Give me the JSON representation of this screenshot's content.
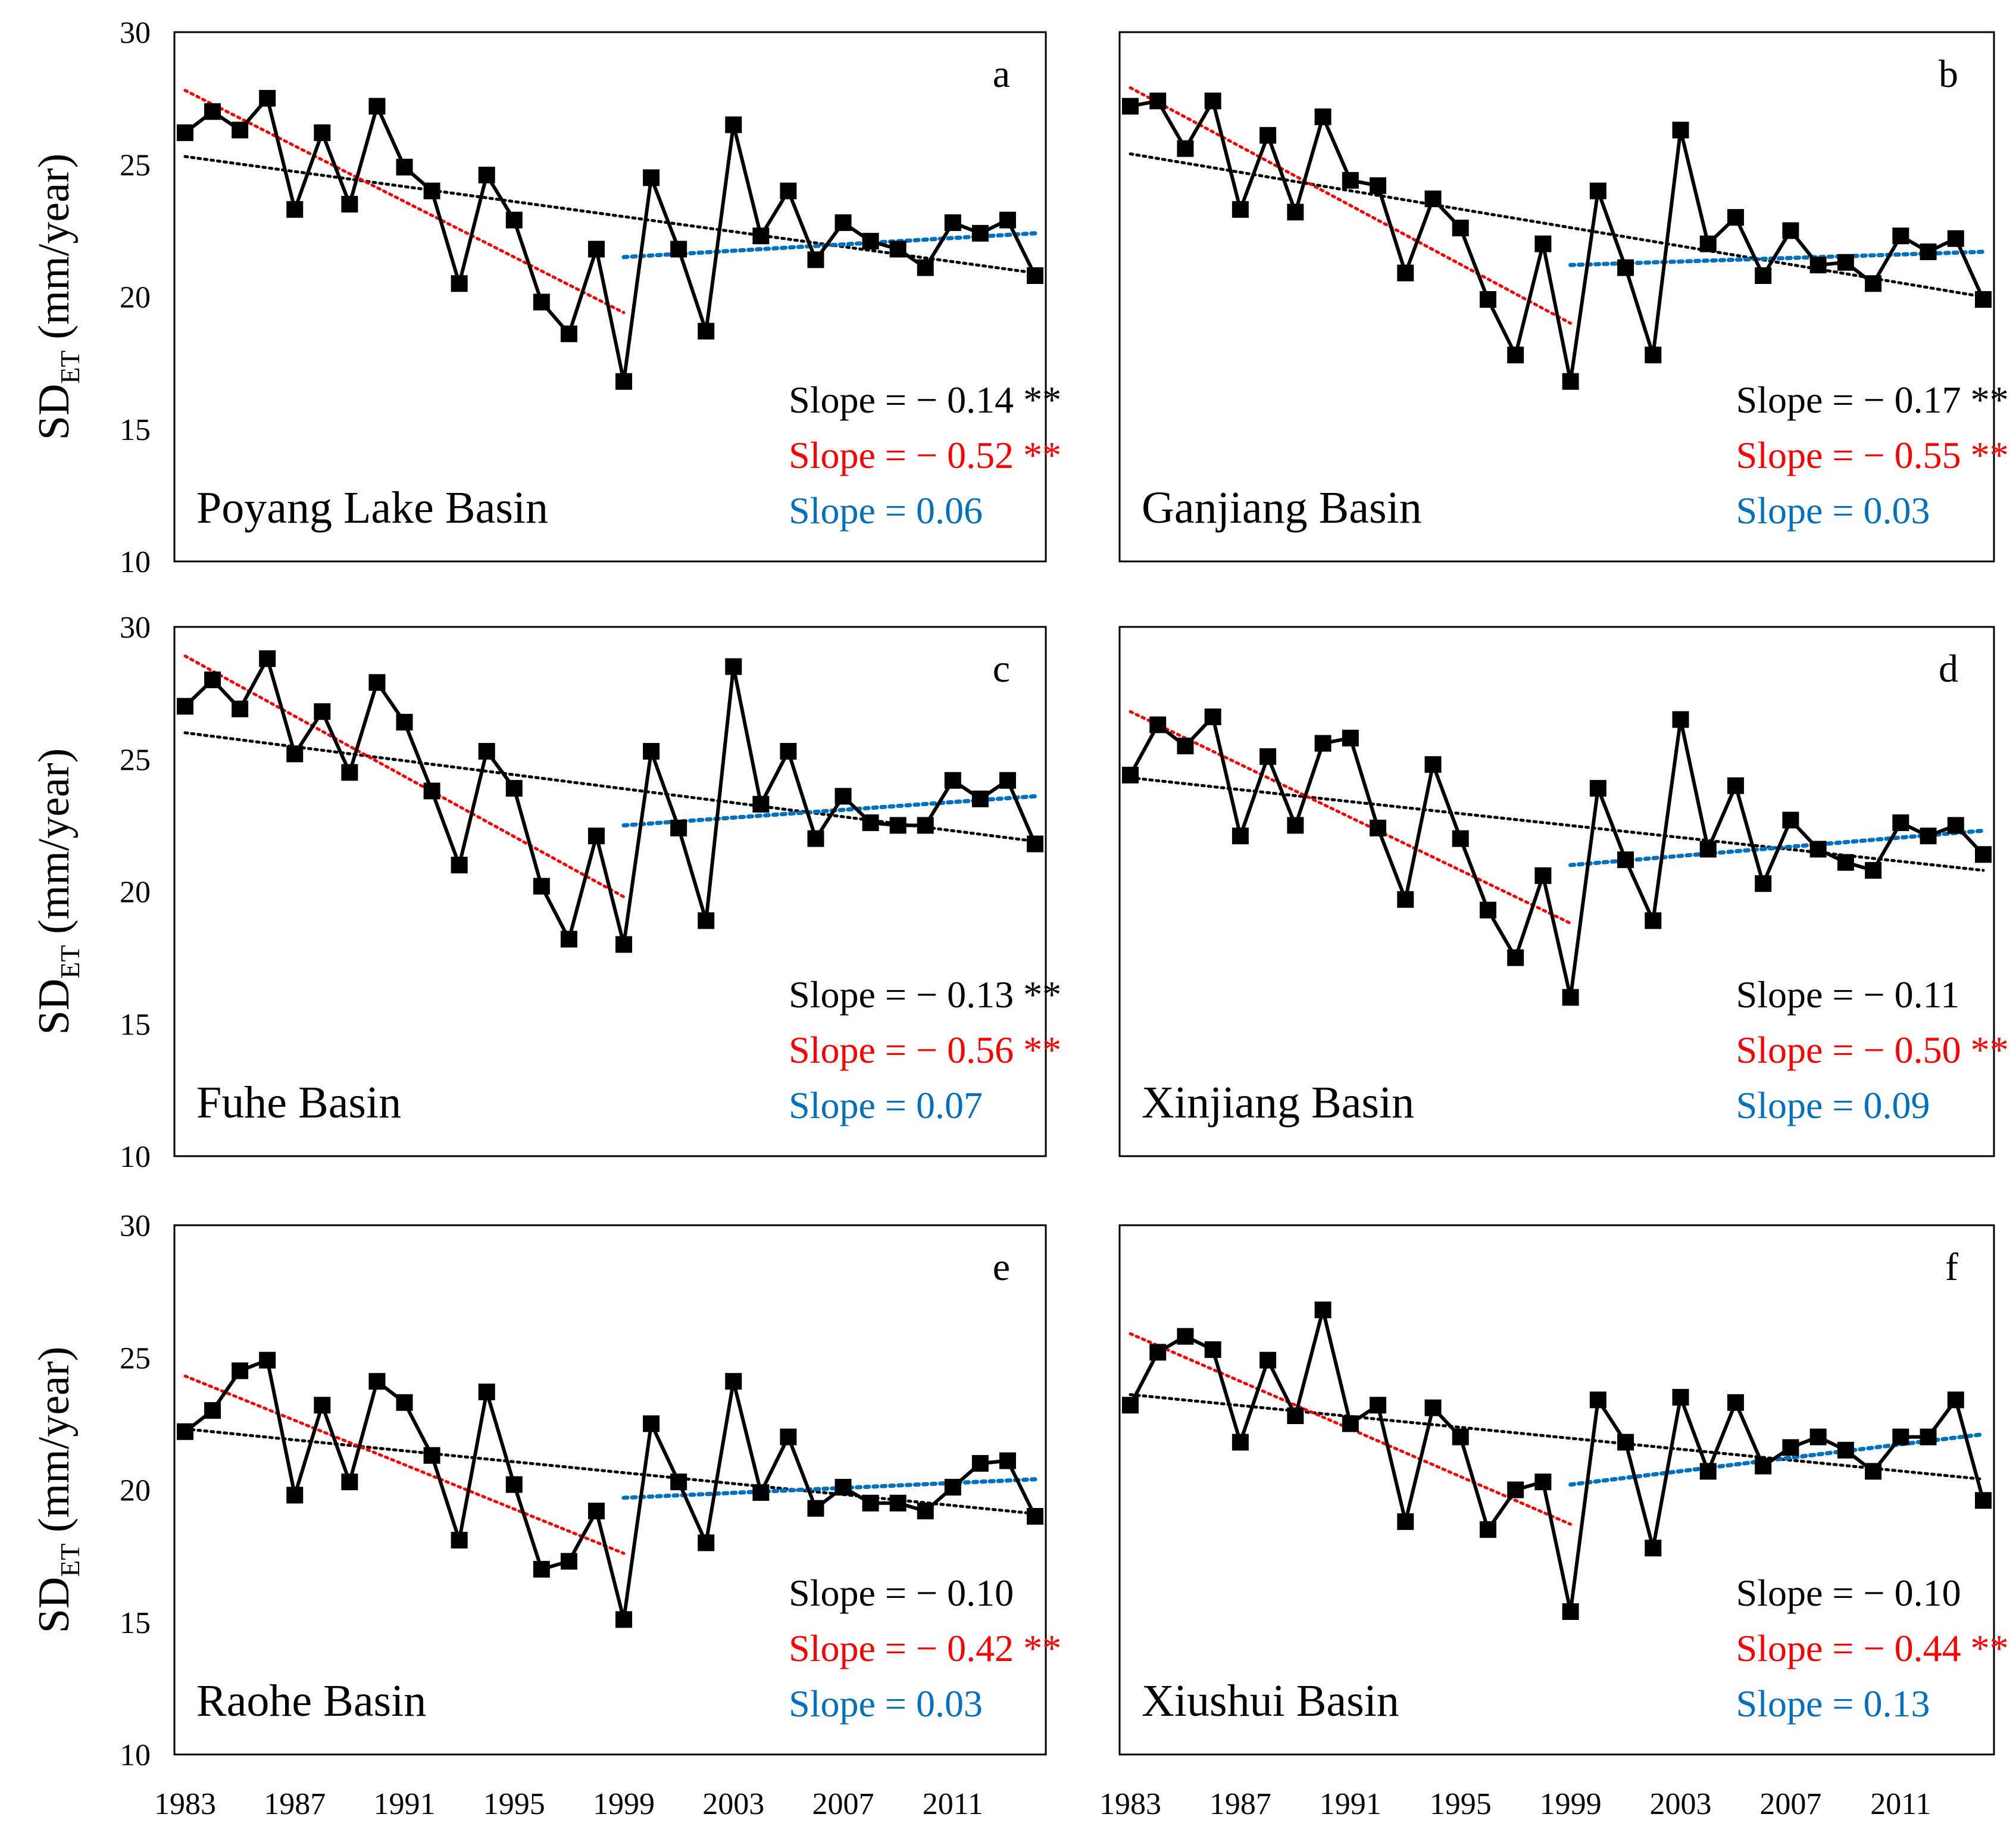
{
  "colors": {
    "series": "#000000",
    "trend_all": "#000000",
    "trend_early": "#ff0000",
    "trend_late": "#0070c0"
  },
  "chart_data": [
    {
      "type": "line",
      "panel": "a",
      "basin": "Poyang Lake Basin",
      "ylabel_main": "SD",
      "ylabel_sub": "ET",
      "ylabel_unit": " (mm/year)",
      "ylim": [
        10,
        30
      ],
      "yticks": [
        "10",
        "15",
        "20",
        "25",
        "30"
      ],
      "xlim": [
        1983,
        2014
      ],
      "xticks": [
        "1983",
        "1987",
        "1991",
        "1995",
        "1999",
        "2003",
        "2007",
        "2011"
      ],
      "x": [
        1983,
        1984,
        1985,
        1986,
        1987,
        1988,
        1989,
        1990,
        1991,
        1992,
        1993,
        1994,
        1995,
        1996,
        1997,
        1998,
        1999,
        2000,
        2001,
        2002,
        2003,
        2004,
        2005,
        2006,
        2007,
        2008,
        2009,
        2010,
        2011,
        2012,
        2013,
        2014
      ],
      "values": [
        26.2,
        27.0,
        26.3,
        27.5,
        23.3,
        26.2,
        23.5,
        27.2,
        24.9,
        24.0,
        20.5,
        24.6,
        22.9,
        19.8,
        18.6,
        21.8,
        16.8,
        24.5,
        21.8,
        18.7,
        26.5,
        22.3,
        24.0,
        21.4,
        22.8,
        22.1,
        21.8,
        21.1,
        22.8,
        22.4,
        22.9,
        20.8
      ],
      "trend_all": {
        "x": [
          1983,
          2014
        ],
        "y": [
          25.3,
          20.9
        ]
      },
      "trend_early": {
        "x": [
          1983,
          1999
        ],
        "y": [
          27.8,
          19.4
        ]
      },
      "trend_late": {
        "x": [
          1999,
          2014
        ],
        "y": [
          21.5,
          22.4
        ]
      },
      "slopes": {
        "all": {
          "text": "Slope = − 0.14",
          "sig": "**"
        },
        "early": {
          "text": "Slope = − 0.52",
          "sig": "**"
        },
        "late": {
          "text": "Slope = 0.06",
          "sig": ""
        }
      }
    },
    {
      "type": "line",
      "panel": "b",
      "basin": "Ganjiang Basin",
      "ylabel_main": "",
      "ylabel_sub": "",
      "ylabel_unit": "",
      "ylim": [
        10,
        30
      ],
      "yticks": [],
      "xlim": [
        1983,
        2014
      ],
      "xticks": [
        "1983",
        "1987",
        "1991",
        "1995",
        "1999",
        "2003",
        "2007",
        "2011"
      ],
      "x": [
        1983,
        1984,
        1985,
        1986,
        1987,
        1988,
        1989,
        1990,
        1991,
        1992,
        1993,
        1994,
        1995,
        1996,
        1997,
        1998,
        1999,
        2000,
        2001,
        2002,
        2003,
        2004,
        2005,
        2006,
        2007,
        2008,
        2009,
        2010,
        2011,
        2012,
        2013,
        2014
      ],
      "values": [
        27.2,
        27.4,
        25.6,
        27.4,
        23.3,
        26.1,
        23.2,
        26.8,
        24.4,
        24.2,
        20.9,
        23.7,
        22.6,
        19.9,
        17.8,
        22.0,
        16.8,
        24.0,
        21.1,
        17.8,
        26.3,
        22.0,
        23.0,
        20.8,
        22.5,
        21.2,
        21.3,
        20.5,
        22.3,
        21.7,
        22.2,
        19.9
      ],
      "trend_all": {
        "x": [
          1983,
          2014
        ],
        "y": [
          25.4,
          20.0
        ]
      },
      "trend_early": {
        "x": [
          1983,
          1999
        ],
        "y": [
          27.9,
          19.0
        ]
      },
      "trend_late": {
        "x": [
          1999,
          2014
        ],
        "y": [
          21.2,
          21.7
        ]
      },
      "slopes": {
        "all": {
          "text": "Slope = − 0.17",
          "sig": "**"
        },
        "early": {
          "text": "Slope = − 0.55",
          "sig": "**"
        },
        "late": {
          "text": "Slope = 0.03",
          "sig": ""
        }
      }
    },
    {
      "type": "line",
      "panel": "c",
      "basin": "Fuhe Basin",
      "ylabel_main": "SD",
      "ylabel_sub": "ET",
      "ylabel_unit": " (mm/year)",
      "ylim": [
        10,
        30
      ],
      "yticks": [
        "10",
        "15",
        "20",
        "25",
        "30"
      ],
      "xlim": [
        1983,
        2014
      ],
      "xticks": [
        "1983",
        "1987",
        "1991",
        "1995",
        "1999",
        "2003",
        "2007",
        "2011"
      ],
      "x": [
        1983,
        1984,
        1985,
        1986,
        1987,
        1988,
        1989,
        1990,
        1991,
        1992,
        1993,
        1994,
        1995,
        1996,
        1997,
        1998,
        1999,
        2000,
        2001,
        2002,
        2003,
        2004,
        2005,
        2006,
        2007,
        2008,
        2009,
        2010,
        2011,
        2012,
        2013,
        2014
      ],
      "values": [
        27.0,
        28.0,
        26.9,
        28.8,
        25.2,
        26.8,
        24.5,
        27.9,
        26.4,
        23.8,
        21.0,
        25.3,
        23.9,
        20.2,
        18.2,
        22.1,
        18.0,
        25.3,
        22.4,
        18.9,
        28.5,
        23.3,
        25.3,
        22.0,
        23.6,
        22.6,
        22.5,
        22.5,
        24.2,
        23.5,
        24.2,
        21.8
      ],
      "trend_all": {
        "x": [
          1983,
          2014
        ],
        "y": [
          26.0,
          21.9
        ]
      },
      "trend_early": {
        "x": [
          1983,
          1999
        ],
        "y": [
          28.9,
          19.8
        ]
      },
      "trend_late": {
        "x": [
          1999,
          2014
        ],
        "y": [
          22.5,
          23.6
        ]
      },
      "slopes": {
        "all": {
          "text": "Slope = − 0.13",
          "sig": "**"
        },
        "early": {
          "text": "Slope = − 0.56",
          "sig": "**"
        },
        "late": {
          "text": "Slope = 0.07",
          "sig": ""
        }
      }
    },
    {
      "type": "line",
      "panel": "d",
      "basin": "Xinjiang Basin",
      "ylabel_main": "",
      "ylabel_sub": "",
      "ylabel_unit": "",
      "ylim": [
        10,
        30
      ],
      "yticks": [],
      "xlim": [
        1983,
        2014
      ],
      "xticks": [
        "1983",
        "1987",
        "1991",
        "1995",
        "1999",
        "2003",
        "2007",
        "2011"
      ],
      "x": [
        1983,
        1984,
        1985,
        1986,
        1987,
        1988,
        1989,
        1990,
        1991,
        1992,
        1993,
        1994,
        1995,
        1996,
        1997,
        1998,
        1999,
        2000,
        2001,
        2002,
        2003,
        2004,
        2005,
        2006,
        2007,
        2008,
        2009,
        2010,
        2011,
        2012,
        2013,
        2014
      ],
      "values": [
        24.4,
        26.3,
        25.5,
        26.6,
        22.1,
        25.1,
        22.5,
        25.6,
        25.8,
        22.4,
        19.7,
        24.8,
        22.0,
        19.3,
        17.5,
        20.6,
        16.0,
        23.9,
        21.2,
        18.9,
        26.5,
        21.6,
        24.0,
        20.3,
        22.7,
        21.6,
        21.1,
        20.8,
        22.6,
        22.1,
        22.5,
        21.4
      ],
      "trend_all": {
        "x": [
          1983,
          2014
        ],
        "y": [
          24.3,
          20.8
        ]
      },
      "trend_early": {
        "x": [
          1983,
          1999
        ],
        "y": [
          26.8,
          18.8
        ]
      },
      "trend_late": {
        "x": [
          1999,
          2014
        ],
        "y": [
          21.0,
          22.3
        ]
      },
      "slopes": {
        "all": {
          "text": "Slope = − 0.11",
          "sig": ""
        },
        "early": {
          "text": "Slope = − 0.50",
          "sig": "**"
        },
        "late": {
          "text": "Slope = 0.09",
          "sig": ""
        }
      }
    },
    {
      "type": "line",
      "panel": "e",
      "basin": "Raohe Basin",
      "ylabel_main": "SD",
      "ylabel_sub": "ET",
      "ylabel_unit": " (mm/year)",
      "ylim": [
        10,
        30
      ],
      "yticks": [
        "10",
        "15",
        "20",
        "25",
        "30"
      ],
      "xlim": [
        1983,
        2014
      ],
      "xticks": [
        "1983",
        "1987",
        "1991",
        "1995",
        "1999",
        "2003",
        "2007",
        "2011"
      ],
      "x": [
        1983,
        1984,
        1985,
        1986,
        1987,
        1988,
        1989,
        1990,
        1991,
        1992,
        1993,
        1994,
        1995,
        1996,
        1997,
        1998,
        1999,
        2000,
        2001,
        2002,
        2003,
        2004,
        2005,
        2006,
        2007,
        2008,
        2009,
        2010,
        2011,
        2012,
        2013,
        2014
      ],
      "values": [
        22.2,
        23.0,
        24.5,
        24.9,
        19.8,
        23.2,
        20.3,
        24.1,
        23.3,
        21.3,
        18.1,
        23.7,
        20.2,
        17.0,
        17.3,
        19.2,
        15.1,
        22.5,
        20.3,
        18.0,
        24.1,
        19.9,
        22.0,
        19.3,
        20.1,
        19.5,
        19.5,
        19.2,
        20.1,
        21.0,
        21.1,
        19.0
      ],
      "trend_all": {
        "x": [
          1983,
          2014
        ],
        "y": [
          22.3,
          19.1
        ]
      },
      "trend_early": {
        "x": [
          1983,
          1999
        ],
        "y": [
          24.3,
          17.6
        ]
      },
      "trend_late": {
        "x": [
          1999,
          2014
        ],
        "y": [
          19.7,
          20.4
        ]
      },
      "slopes": {
        "all": {
          "text": "Slope = − 0.10",
          "sig": ""
        },
        "early": {
          "text": "Slope = − 0.42",
          "sig": "**"
        },
        "late": {
          "text": "Slope = 0.03",
          "sig": ""
        }
      }
    },
    {
      "type": "line",
      "panel": "f",
      "basin": "Xiushui Basin",
      "ylabel_main": "",
      "ylabel_sub": "",
      "ylabel_unit": "",
      "ylim": [
        10,
        30
      ],
      "yticks": [],
      "xlim": [
        1983,
        2014
      ],
      "xticks": [
        "1983",
        "1987",
        "1991",
        "1995",
        "1999",
        "2003",
        "2007",
        "2011"
      ],
      "x": [
        1983,
        1984,
        1985,
        1986,
        1987,
        1988,
        1989,
        1990,
        1991,
        1992,
        1993,
        1994,
        1995,
        1996,
        1997,
        1998,
        1999,
        2000,
        2001,
        2002,
        2003,
        2004,
        2005,
        2006,
        2007,
        2008,
        2009,
        2010,
        2011,
        2012,
        2013,
        2014
      ],
      "values": [
        23.2,
        25.2,
        25.8,
        25.3,
        21.8,
        24.9,
        22.8,
        26.8,
        22.5,
        23.2,
        18.8,
        23.1,
        22.0,
        18.5,
        20.0,
        20.3,
        15.4,
        23.4,
        21.8,
        17.8,
        23.5,
        20.7,
        23.3,
        20.9,
        21.6,
        22.0,
        21.5,
        20.7,
        22.0,
        22.0,
        23.4,
        19.6
      ],
      "trend_all": {
        "x": [
          1983,
          2014
        ],
        "y": [
          23.6,
          20.4
        ]
      },
      "trend_early": {
        "x": [
          1983,
          1999
        ],
        "y": [
          25.9,
          18.7
        ]
      },
      "trend_late": {
        "x": [
          1999,
          2014
        ],
        "y": [
          20.2,
          22.1
        ]
      },
      "slopes": {
        "all": {
          "text": "Slope = − 0.10",
          "sig": ""
        },
        "early": {
          "text": "Slope = − 0.44",
          "sig": "**"
        },
        "late": {
          "text": "Slope = 0.13",
          "sig": ""
        }
      }
    }
  ]
}
